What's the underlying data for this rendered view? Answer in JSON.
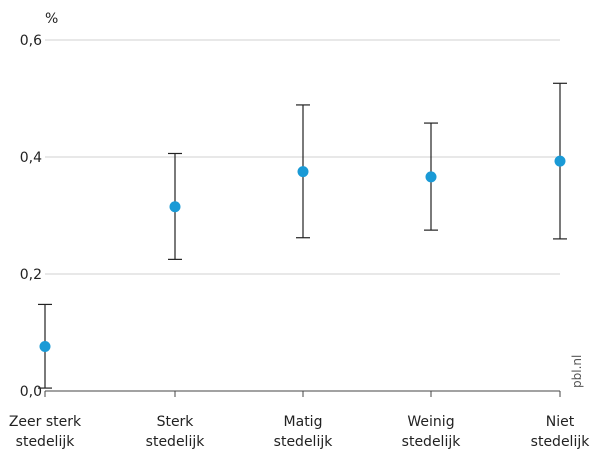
{
  "chart_data": {
    "type": "scatter",
    "unit": "%",
    "ylim": [
      0,
      0.6
    ],
    "yticks": [
      0.0,
      0.2,
      0.4,
      0.6
    ],
    "ytick_labels": [
      "0,0",
      "0,2",
      "0,4",
      "0,6"
    ],
    "grid": true,
    "categories": [
      [
        "Zeer sterk",
        "stedelijk"
      ],
      [
        "Sterk",
        "stedelijk"
      ],
      [
        "Matig",
        "stedelijk"
      ],
      [
        "Weinig",
        "stedelijk"
      ],
      [
        "Niet",
        "stedelijk"
      ]
    ],
    "series": [
      {
        "values": [
          0.076,
          0.315,
          0.375,
          0.366,
          0.393
        ],
        "lower": [
          0.005,
          0.225,
          0.262,
          0.275,
          0.26
        ],
        "upper": [
          0.148,
          0.406,
          0.489,
          0.458,
          0.526
        ],
        "color": "#1a9ad6"
      }
    ],
    "watermark": "pbl.nl"
  }
}
